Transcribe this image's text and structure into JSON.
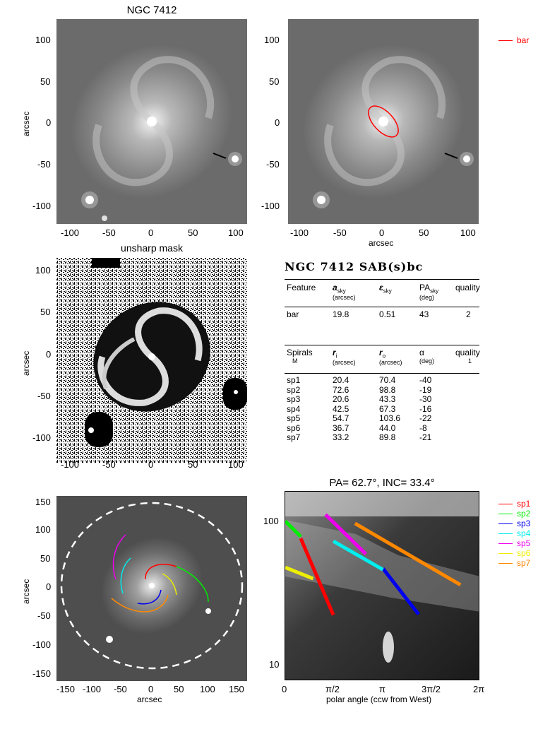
{
  "panel1": {
    "title": "NGC 7412",
    "ylabel": "arcsec",
    "yticks": [
      "100",
      "50",
      "0",
      "-50",
      "-100"
    ],
    "xticks": [
      "-100",
      "-50",
      "0",
      "50",
      "100"
    ]
  },
  "panel2": {
    "xlabel": "arcsec",
    "yticks": [
      "100",
      "50",
      "0",
      "-50",
      "-100"
    ],
    "xticks": [
      "-100",
      "-50",
      "0",
      "50",
      "100"
    ],
    "legend": [
      {
        "label": "bar",
        "color": "#ff0000"
      }
    ]
  },
  "panel3": {
    "title": "unsharp mask",
    "ylabel": "arcsec",
    "yticks": [
      "100",
      "50",
      "0",
      "-50",
      "-100"
    ],
    "xticks": [
      "-100",
      "-50",
      "0",
      "50",
      "100"
    ]
  },
  "table": {
    "title": "NGC 7412  SAB(s)bc",
    "bar_header": {
      "feature": "Feature",
      "a": "a",
      "a_sub": "sky",
      "a_unit": "(arcsec)",
      "eps": "ε",
      "eps_sub": "sky",
      "pa": "PA",
      "pa_sub": "sky",
      "pa_unit": "(deg)",
      "quality": "quality"
    },
    "bar_row": {
      "feature": "bar",
      "a": "19.8",
      "eps": "0.51",
      "pa": "43",
      "quality": "2"
    },
    "spiral_header": {
      "spirals": "Spirals",
      "m": "M",
      "ri": "r",
      "ri_sub": "i",
      "ri_unit": "(arcsec)",
      "ro": "r",
      "ro_sub": "o",
      "ro_unit": "(arcsec)",
      "alpha": "α",
      "alpha_unit": "(deg)",
      "quality": "quality",
      "quality_val": "1"
    },
    "spiral_rows": [
      {
        "name": "sp1",
        "ri": "20.4",
        "ro": "70.4",
        "alpha": "-40"
      },
      {
        "name": "sp2",
        "ri": "72.6",
        "ro": "98.8",
        "alpha": "-19"
      },
      {
        "name": "sp3",
        "ri": "20.6",
        "ro": "43.3",
        "alpha": "-30"
      },
      {
        "name": "sp4",
        "ri": "42.5",
        "ro": "67.3",
        "alpha": "-16"
      },
      {
        "name": "sp5",
        "ri": "54.7",
        "ro": "103.6",
        "alpha": "-22"
      },
      {
        "name": "sp6",
        "ri": "36.7",
        "ro": "44.0",
        "alpha": "-8"
      },
      {
        "name": "sp7",
        "ri": "33.2",
        "ro": "89.8",
        "alpha": "-21"
      }
    ]
  },
  "panel5": {
    "ylabel": "arcsec",
    "xlabel": "arcsec",
    "yticks": [
      "150",
      "100",
      "50",
      "0",
      "-50",
      "-100",
      "-150"
    ],
    "xticks": [
      "-150",
      "-100",
      "-50",
      "0",
      "50",
      "100",
      "150"
    ]
  },
  "panel6": {
    "title": "PA=  62.7°, INC=  33.4°",
    "xlabel": "polar angle (ccw from West)",
    "yticks": [
      "100",
      "10"
    ],
    "xticks": [
      "0",
      "π/2",
      "π",
      "3π/2",
      "2π"
    ],
    "legend": [
      {
        "label": "sp1",
        "color": "#ff0000"
      },
      {
        "label": "sp2",
        "color": "#00ee00"
      },
      {
        "label": "sp3",
        "color": "#0000ee"
      },
      {
        "label": "sp4",
        "color": "#00eeee"
      },
      {
        "label": "sp5",
        "color": "#ee00ee"
      },
      {
        "label": "sp6",
        "color": "#eeee00"
      },
      {
        "label": "sp7",
        "color": "#ff8800"
      }
    ]
  },
  "chart_data": [
    {
      "type": "line",
      "panel": "polar-angle vs log radius (bottom right)",
      "title": "PA=  62.7°, INC=  33.4°",
      "xlabel": "polar angle (ccw from West)",
      "ylabel": "",
      "xlim": [
        0,
        6.2832
      ],
      "ylim": [
        7,
        150
      ],
      "yscale": "log",
      "series": [
        {
          "name": "sp1",
          "color": "#ff0000",
          "x": [
            0.5,
            1.55
          ],
          "y": [
            70.4,
            20.4
          ]
        },
        {
          "name": "sp2",
          "color": "#00ee00",
          "x": [
            0.0,
            0.5
          ],
          "y": [
            93,
            72.6
          ]
        },
        {
          "name": "sp3",
          "color": "#0000ee",
          "x": [
            3.15,
            4.3
          ],
          "y": [
            43.3,
            20.6
          ]
        },
        {
          "name": "sp4",
          "color": "#00eeee",
          "x": [
            1.55,
            3.15
          ],
          "y": [
            67.3,
            42.5
          ]
        },
        {
          "name": "sp5",
          "color": "#ee00ee",
          "x": [
            1.3,
            2.6
          ],
          "y": [
            103.6,
            54.7
          ]
        },
        {
          "name": "sp6",
          "color": "#eeee00",
          "x": [
            0.0,
            0.9
          ],
          "y": [
            44.0,
            36.7
          ]
        },
        {
          "name": "sp7",
          "color": "#ff8800",
          "x": [
            2.25,
            5.65
          ],
          "y": [
            89.8,
            33.2
          ]
        }
      ]
    }
  ]
}
